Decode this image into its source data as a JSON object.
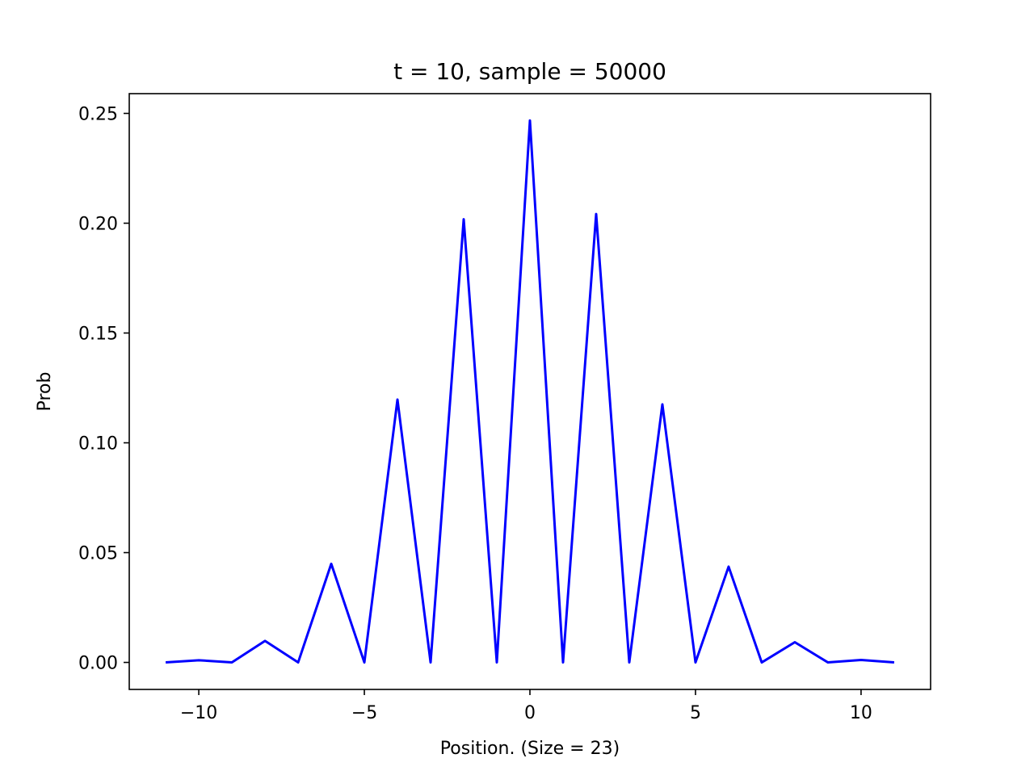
{
  "chart_data": {
    "type": "line",
    "title": "t = 10, sample = 50000",
    "xlabel": "Position. (Size = 23)",
    "ylabel": "Prob",
    "xlim": [
      -12.1,
      12.1
    ],
    "ylim": [
      -0.0123,
      0.259
    ],
    "xticks": [
      -10,
      -5,
      0,
      5,
      10
    ],
    "xtick_labels": [
      "−10",
      "−5",
      "0",
      "5",
      "10"
    ],
    "yticks": [
      0.0,
      0.05,
      0.1,
      0.15,
      0.2,
      0.25
    ],
    "ytick_labels": [
      "0.00",
      "0.05",
      "0.10",
      "0.15",
      "0.20",
      "0.25"
    ],
    "grid": false,
    "series": [
      {
        "color": "#0000ff",
        "x": [
          -11,
          -10,
          -9,
          -8,
          -7,
          -6,
          -5,
          -4,
          -3,
          -2,
          -1,
          0,
          1,
          2,
          3,
          4,
          5,
          6,
          7,
          8,
          9,
          10,
          11
        ],
        "y": [
          0.0,
          0.001,
          0.0,
          0.0098,
          0.0,
          0.0449,
          0.0,
          0.1197,
          0.0,
          0.2018,
          0.0,
          0.2468,
          0.0,
          0.2042,
          0.0,
          0.1175,
          0.0,
          0.0436,
          0.0,
          0.0092,
          0.0,
          0.0011,
          0.0
        ]
      }
    ]
  }
}
